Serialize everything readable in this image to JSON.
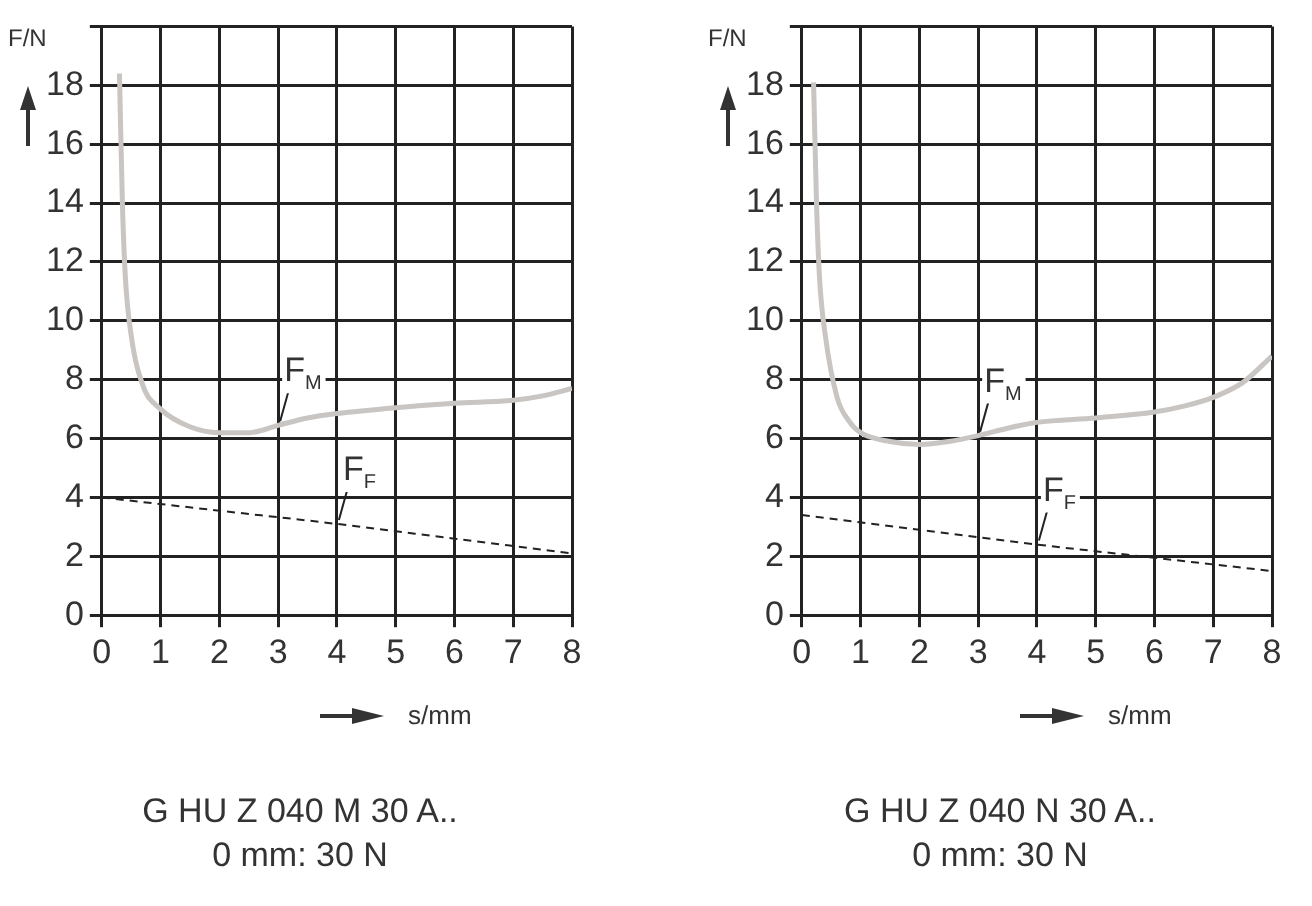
{
  "chart_data": [
    {
      "type": "line",
      "title": "G HU Z 040 M 30 A..",
      "subtitle": "0 mm:  30 N",
      "xlabel": "s/mm",
      "ylabel": "F/N",
      "series": [
        {
          "name": "F$_{M}$",
          "color": "#c8c5c2",
          "line_style": "solid",
          "x": [
            0.3,
            0.35,
            0.4,
            0.5,
            0.7,
            1,
            1.5,
            2,
            2.5,
            3,
            3.5,
            4,
            5,
            6,
            7,
            7.5,
            8
          ],
          "values": [
            18.4,
            14,
            11.5,
            9.5,
            7.8,
            7.0,
            6.4,
            6.2,
            6.2,
            6.45,
            6.7,
            6.85,
            7.05,
            7.2,
            7.3,
            7.45,
            7.7
          ]
        },
        {
          "name": "F$_{F}$",
          "color": "#222222",
          "line_style": "dashed",
          "x": [
            0,
            2,
            4,
            6,
            8
          ],
          "values": [
            4.0,
            3.55,
            3.1,
            2.6,
            2.1
          ]
        }
      ],
      "xlim": [
        0,
        8
      ],
      "xticks": [
        0,
        1,
        2,
        3,
        4,
        5,
        6,
        7,
        8
      ],
      "ylim": [
        0,
        20
      ],
      "yticks": [
        0,
        2,
        4,
        6,
        8,
        10,
        12,
        14,
        16,
        18,
        {
          "value": 20,
          "label": null
        }
      ],
      "grid": true,
      "legend": false,
      "marker": "none"
    },
    {
      "type": "line",
      "title": "G HU Z 040 N 30 A..",
      "subtitle": "0 mm:  30 N",
      "xlabel": "s/mm",
      "ylabel": "F/N",
      "series": [
        {
          "name": "F$_{M}$",
          "color": "#c8c5c2",
          "line_style": "solid",
          "x": [
            0.2,
            0.25,
            0.3,
            0.4,
            0.6,
            0.8,
            1,
            1.5,
            2,
            2.5,
            3,
            3.5,
            4,
            5,
            6,
            6.5,
            7,
            7.5,
            8
          ],
          "values": [
            18.1,
            14,
            11.5,
            9.5,
            7.4,
            6.6,
            6.2,
            5.9,
            5.8,
            5.9,
            6.1,
            6.35,
            6.55,
            6.7,
            6.9,
            7.1,
            7.4,
            7.9,
            8.8
          ]
        },
        {
          "name": "F$_{F}$",
          "color": "#222222",
          "line_style": "dashed",
          "x": [
            0,
            2,
            4,
            6,
            8
          ],
          "values": [
            3.4,
            2.9,
            2.4,
            1.95,
            1.5
          ]
        }
      ],
      "xlim": [
        0,
        8
      ],
      "xticks": [
        0,
        1,
        2,
        3,
        4,
        5,
        6,
        7,
        8
      ],
      "ylim": [
        0,
        20
      ],
      "yticks": [
        0,
        2,
        4,
        6,
        8,
        10,
        12,
        14,
        16,
        18,
        {
          "value": 20,
          "label": null
        }
      ],
      "grid": true,
      "legend": false,
      "marker": "none"
    }
  ]
}
